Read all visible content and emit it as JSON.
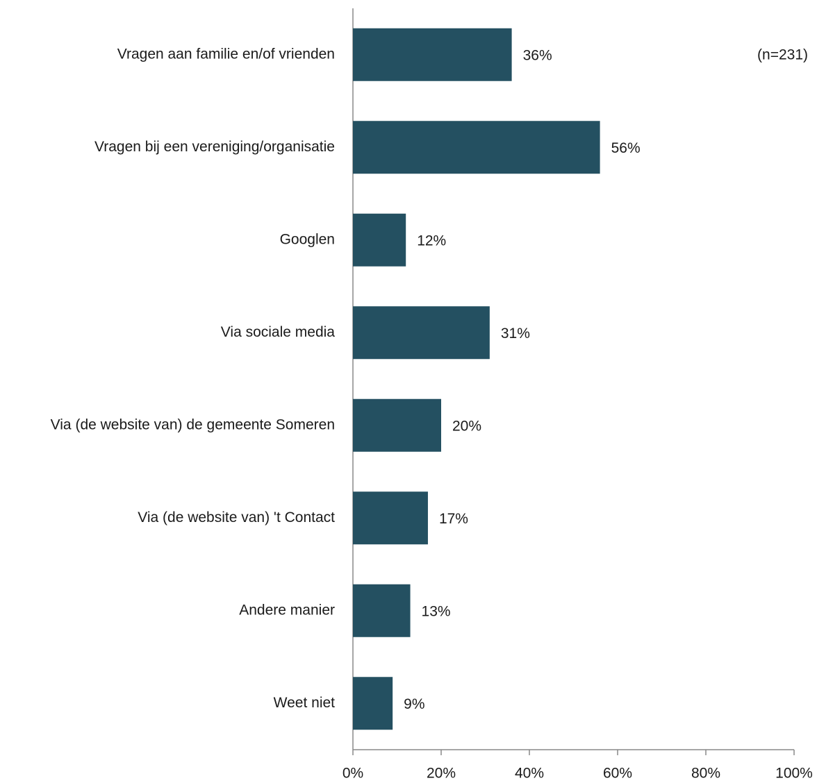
{
  "chart_data": {
    "type": "bar",
    "orientation": "horizontal",
    "annotation": "(n=231)",
    "categories": [
      "Vragen aan familie en/of vrienden",
      "Vragen bij een vereniging/organisatie",
      "Googlen",
      "Via sociale media",
      "Via (de website van) de gemeente Someren",
      "Via (de website van) 't Contact",
      "Andere manier",
      "Weet niet"
    ],
    "values": [
      36,
      56,
      12,
      31,
      20,
      17,
      13,
      9
    ],
    "value_labels": [
      "36%",
      "56%",
      "12%",
      "31%",
      "20%",
      "17%",
      "13%",
      "9%"
    ],
    "color": "#245061",
    "xlim": [
      0,
      100
    ],
    "xticks": [
      {
        "value": 0,
        "label": "0%"
      },
      {
        "value": 20,
        "label": "20%"
      },
      {
        "value": 40,
        "label": "40%"
      },
      {
        "value": 60,
        "label": "60%"
      },
      {
        "value": 80,
        "label": "80%"
      },
      {
        "value": 100,
        "label": "100%"
      }
    ],
    "grid": false
  }
}
